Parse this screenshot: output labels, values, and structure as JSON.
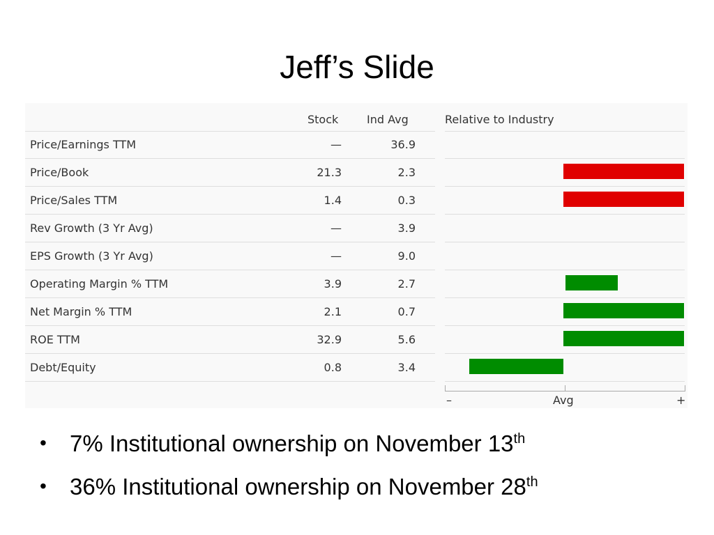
{
  "slide": {
    "title": "Jeff’s Slide",
    "bullets": [
      {
        "text": " 7% Institutional ownership on November 13",
        "sup": "th"
      },
      {
        "text": "36% Institutional ownership on November 28",
        "sup": "th"
      }
    ]
  },
  "table": {
    "headers": {
      "stock": "Stock",
      "ind_avg": "Ind Avg",
      "relative": "Relative to Industry"
    },
    "rows": [
      {
        "label": "Price/Earnings TTM",
        "stock": "—",
        "ind_avg": "36.9",
        "bar": null
      },
      {
        "label": "Price/Book",
        "stock": "21.3",
        "ind_avg": "2.3",
        "bar": {
          "from": 0.0,
          "to": 1.0,
          "color": "#e00000"
        }
      },
      {
        "label": "Price/Sales TTM",
        "stock": "1.4",
        "ind_avg": "0.3",
        "bar": {
          "from": 0.0,
          "to": 1.0,
          "color": "#e00000"
        }
      },
      {
        "label": "Rev Growth (3 Yr Avg)",
        "stock": "—",
        "ind_avg": "3.9",
        "bar": null
      },
      {
        "label": "EPS Growth (3 Yr Avg)",
        "stock": "—",
        "ind_avg": "9.0",
        "bar": null
      },
      {
        "label": "Operating Margin % TTM",
        "stock": "3.9",
        "ind_avg": "2.7",
        "bar": {
          "from": 0.02,
          "to": 0.45,
          "color": "#008c00"
        }
      },
      {
        "label": "Net Margin % TTM",
        "stock": "2.1",
        "ind_avg": "0.7",
        "bar": {
          "from": 0.0,
          "to": 1.0,
          "color": "#008c00"
        }
      },
      {
        "label": "ROE TTM",
        "stock": "32.9",
        "ind_avg": "5.6",
        "bar": {
          "from": 0.0,
          "to": 1.0,
          "color": "#008c00"
        }
      },
      {
        "label": "Debt/Equity",
        "stock": "0.8",
        "ind_avg": "3.4",
        "bar": {
          "from": -0.78,
          "to": 0.0,
          "color": "#008c00"
        }
      }
    ],
    "axis": {
      "minus": "–",
      "avg": "Avg",
      "plus": "+"
    }
  }
}
